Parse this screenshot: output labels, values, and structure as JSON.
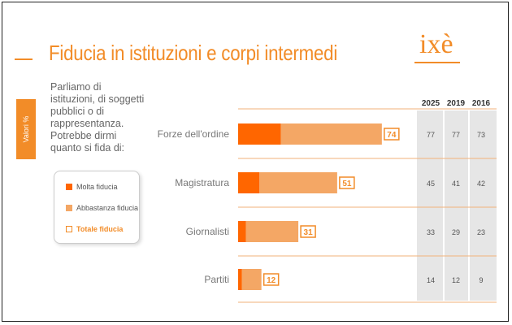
{
  "header": {
    "title": "Fiducia in istituzioni e corpi intermedi",
    "logo_text": "ixè"
  },
  "sidebar": {
    "tab_label": "Valori %"
  },
  "question": "Parliamo di istituzioni, di soggetti pubblici o di rappresentanza. Potrebbe dirmi quanto si fida di:",
  "legend": [
    {
      "label": "Molta fiducia",
      "color": "#ff6600",
      "style": "filled"
    },
    {
      "label": "Abbastanza fiducia",
      "color": "#f4a765",
      "style": "filled"
    },
    {
      "label": "Totale fiducia",
      "color": "#f28c28",
      "style": "outline"
    }
  ],
  "chart_data": {
    "type": "bar",
    "orientation": "horizontal",
    "stacked": true,
    "categories": [
      "Forze dell'ordine",
      "Magistratura",
      "Giornalisti",
      "Partiti"
    ],
    "series": [
      {
        "name": "Molta fiducia",
        "values": [
          22,
          11,
          4,
          2
        ],
        "color": "#ff6600"
      },
      {
        "name": "Abbastanza fiducia",
        "values": [
          52,
          40,
          27,
          10
        ],
        "color": "#f4a765"
      }
    ],
    "totals": [
      74,
      51,
      31,
      12
    ],
    "history": {
      "years": [
        "2025",
        "2019",
        "2016"
      ],
      "values": [
        [
          77,
          77,
          73
        ],
        [
          45,
          41,
          42
        ],
        [
          33,
          29,
          23
        ],
        [
          14,
          12,
          9
        ]
      ]
    },
    "xlim": [
      0,
      100
    ]
  }
}
